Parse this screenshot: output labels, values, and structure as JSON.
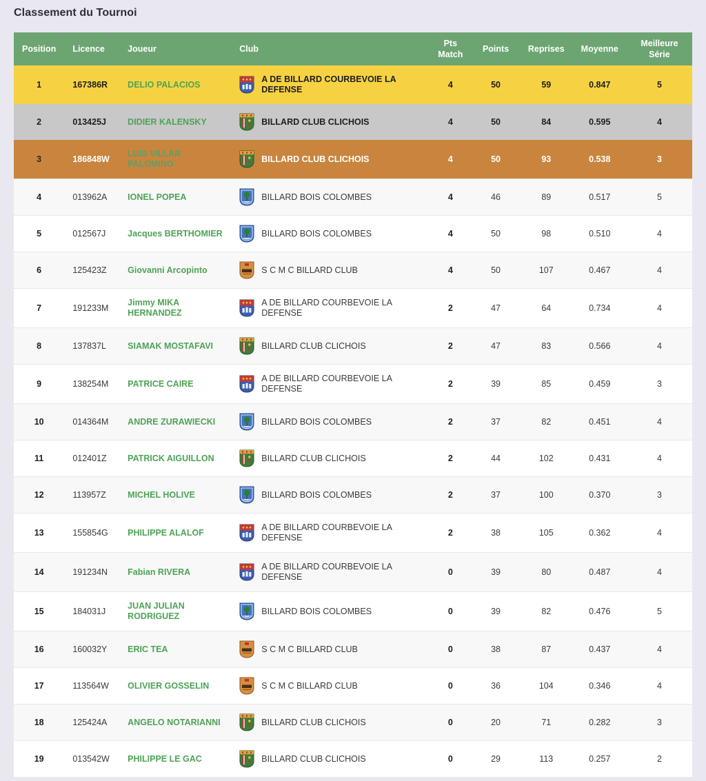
{
  "title": "Classement du Tournoi",
  "colors": {
    "header_green": "#6da572",
    "gold": "#f6d243",
    "silver": "#c8c8c8",
    "bronze": "#c9853e",
    "player_green": "#4da356",
    "row_stripe": "#f8f8f8",
    "page_background": "#e9e8f1"
  },
  "table": {
    "columns": [
      {
        "id": "position",
        "label": "Position",
        "align": "center"
      },
      {
        "id": "licence",
        "label": "Licence",
        "align": "left"
      },
      {
        "id": "joueur",
        "label": "Joueur",
        "align": "left"
      },
      {
        "id": "club",
        "label": "Club",
        "align": "left"
      },
      {
        "id": "pts_match",
        "label": "Pts Match",
        "align": "center"
      },
      {
        "id": "points",
        "label": "Points",
        "align": "center"
      },
      {
        "id": "reprises",
        "label": "Reprises",
        "align": "center"
      },
      {
        "id": "moyenne",
        "label": "Moyenne",
        "align": "center"
      },
      {
        "id": "meilleure_serie",
        "label": "Meilleure Série",
        "align": "center"
      }
    ],
    "rows": [
      {
        "position": "1",
        "licence": "167386R",
        "player": "DELIO PALACIOS",
        "club": "A DE BILLARD COURBEVOIE LA DEFENSE",
        "club_icon": "courbevoie-crest-icon",
        "pts_match": "4",
        "points": "50",
        "reprises": "59",
        "moyenne": "0.847",
        "meilleure_serie": "5",
        "highlight": "gold"
      },
      {
        "position": "2",
        "licence": "013425J",
        "player": "DIDIER KALENSKY",
        "club": "BILLARD CLUB CLICHOIS",
        "club_icon": "clichois-crest-icon",
        "pts_match": "4",
        "points": "50",
        "reprises": "84",
        "moyenne": "0.595",
        "meilleure_serie": "4",
        "highlight": "silver"
      },
      {
        "position": "3",
        "licence": "186848W",
        "player": "LUIS VILLAR PALOMINO",
        "club": "BILLARD CLUB CLICHOIS",
        "club_icon": "clichois-crest-icon",
        "pts_match": "4",
        "points": "50",
        "reprises": "93",
        "moyenne": "0.538",
        "meilleure_serie": "3",
        "highlight": "bronze"
      },
      {
        "position": "4",
        "licence": "013962A",
        "player": "IONEL POPEA",
        "club": "BILLARD BOIS COLOMBES",
        "club_icon": "colombes-crest-icon",
        "pts_match": "4",
        "points": "46",
        "reprises": "89",
        "moyenne": "0.517",
        "meilleure_serie": "5",
        "highlight": null
      },
      {
        "position": "5",
        "licence": "012567J",
        "player": "Jacques BERTHOMIER",
        "club": "BILLARD BOIS COLOMBES",
        "club_icon": "colombes-crest-icon",
        "pts_match": "4",
        "points": "50",
        "reprises": "98",
        "moyenne": "0.510",
        "meilleure_serie": "4",
        "highlight": null
      },
      {
        "position": "6",
        "licence": "125423Z",
        "player": "Giovanni Arcopinto",
        "club": "S C M C BILLARD CLUB",
        "club_icon": "scmc-crest-icon",
        "pts_match": "4",
        "points": "50",
        "reprises": "107",
        "moyenne": "0.467",
        "meilleure_serie": "4",
        "highlight": null
      },
      {
        "position": "7",
        "licence": "191233M",
        "player": "Jimmy MIKA HERNANDEZ",
        "club": "A DE BILLARD COURBEVOIE LA DEFENSE",
        "club_icon": "courbevoie-crest-icon",
        "pts_match": "2",
        "points": "47",
        "reprises": "64",
        "moyenne": "0.734",
        "meilleure_serie": "4",
        "highlight": null
      },
      {
        "position": "8",
        "licence": "137837L",
        "player": "SIAMAK MOSTAFAVI",
        "club": "BILLARD CLUB CLICHOIS",
        "club_icon": "clichois-crest-icon",
        "pts_match": "2",
        "points": "47",
        "reprises": "83",
        "moyenne": "0.566",
        "meilleure_serie": "4",
        "highlight": null
      },
      {
        "position": "9",
        "licence": "138254M",
        "player": "PATRICE CAIRE",
        "club": "A DE BILLARD COURBEVOIE LA DEFENSE",
        "club_icon": "courbevoie-crest-icon",
        "pts_match": "2",
        "points": "39",
        "reprises": "85",
        "moyenne": "0.459",
        "meilleure_serie": "3",
        "highlight": null
      },
      {
        "position": "10",
        "licence": "014364M",
        "player": "ANDRE ZURAWIECKI",
        "club": "BILLARD BOIS COLOMBES",
        "club_icon": "colombes-crest-icon",
        "pts_match": "2",
        "points": "37",
        "reprises": "82",
        "moyenne": "0.451",
        "meilleure_serie": "4",
        "highlight": null
      },
      {
        "position": "11",
        "licence": "012401Z",
        "player": "PATRICK AIGUILLON",
        "club": "BILLARD CLUB CLICHOIS",
        "club_icon": "clichois-crest-icon",
        "pts_match": "2",
        "points": "44",
        "reprises": "102",
        "moyenne": "0.431",
        "meilleure_serie": "4",
        "highlight": null
      },
      {
        "position": "12",
        "licence": "113957Z",
        "player": "MICHEL HOLIVE",
        "club": "BILLARD BOIS COLOMBES",
        "club_icon": "colombes-crest-icon",
        "pts_match": "2",
        "points": "37",
        "reprises": "100",
        "moyenne": "0.370",
        "meilleure_serie": "3",
        "highlight": null
      },
      {
        "position": "13",
        "licence": "155854G",
        "player": "PHILIPPE ALALOF",
        "club": "A DE BILLARD COURBEVOIE LA DEFENSE",
        "club_icon": "courbevoie-crest-icon",
        "pts_match": "2",
        "points": "38",
        "reprises": "105",
        "moyenne": "0.362",
        "meilleure_serie": "4",
        "highlight": null
      },
      {
        "position": "14",
        "licence": "191234N",
        "player": "Fabian RIVERA",
        "club": "A DE BILLARD COURBEVOIE LA DEFENSE",
        "club_icon": "courbevoie-crest-icon",
        "pts_match": "0",
        "points": "39",
        "reprises": "80",
        "moyenne": "0.487",
        "meilleure_serie": "4",
        "highlight": null
      },
      {
        "position": "15",
        "licence": "184031J",
        "player": "JUAN JULIAN RODRIGUEZ",
        "club": "BILLARD BOIS COLOMBES",
        "club_icon": "colombes-crest-icon",
        "pts_match": "0",
        "points": "39",
        "reprises": "82",
        "moyenne": "0.476",
        "meilleure_serie": "5",
        "highlight": null
      },
      {
        "position": "16",
        "licence": "160032Y",
        "player": "ERIC TEA",
        "club": "S C M C BILLARD CLUB",
        "club_icon": "scmc-crest-icon",
        "pts_match": "0",
        "points": "38",
        "reprises": "87",
        "moyenne": "0.437",
        "meilleure_serie": "4",
        "highlight": null
      },
      {
        "position": "17",
        "licence": "113564W",
        "player": "OLIVIER GOSSELIN",
        "club": "S C M C BILLARD CLUB",
        "club_icon": "scmc-crest-icon",
        "pts_match": "0",
        "points": "36",
        "reprises": "104",
        "moyenne": "0.346",
        "meilleure_serie": "4",
        "highlight": null
      },
      {
        "position": "18",
        "licence": "125424A",
        "player": "ANGELO NOTARIANNI",
        "club": "BILLARD CLUB CLICHOIS",
        "club_icon": "clichois-crest-icon",
        "pts_match": "0",
        "points": "20",
        "reprises": "71",
        "moyenne": "0.282",
        "meilleure_serie": "3",
        "highlight": null
      },
      {
        "position": "19",
        "licence": "013542W",
        "player": "PHILIPPE LE GAC",
        "club": "BILLARD CLUB CLICHOIS",
        "club_icon": "clichois-crest-icon",
        "pts_match": "0",
        "points": "29",
        "reprises": "113",
        "moyenne": "0.257",
        "meilleure_serie": "2",
        "highlight": null
      }
    ]
  }
}
